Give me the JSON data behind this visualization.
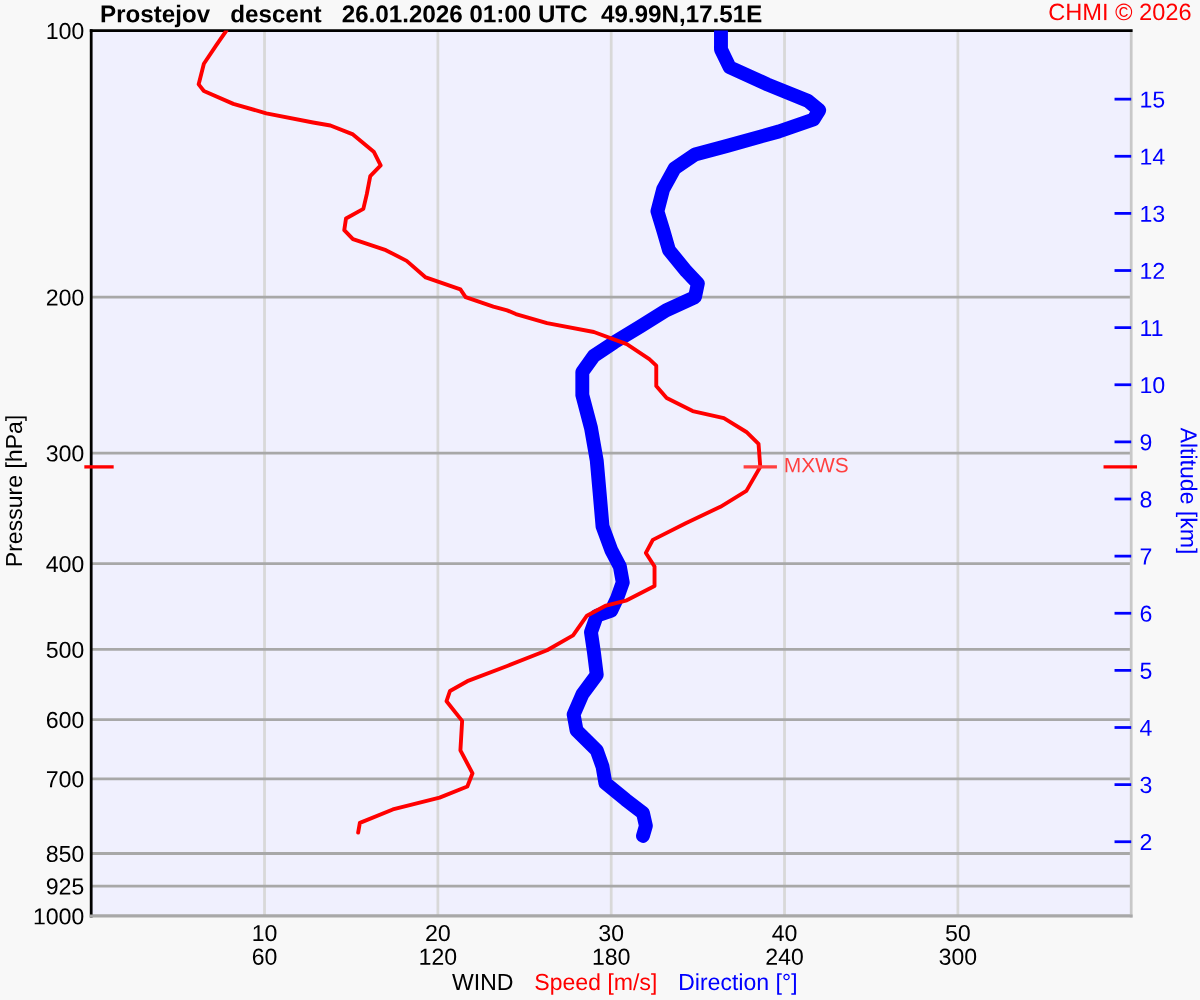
{
  "chart_data": {
    "type": "line",
    "title": "Prostejov   descent   26.01.2026 01:00 UTC  49.99N,17.51E",
    "xlabel": "WIND",
    "ylabel": "Pressure [hPa]",
    "y2label": "Altitude [km]",
    "annotations": [
      {
        "text": "MXWS",
        "x": 38.6,
        "y": 311
      },
      "CHMI © 2026"
    ],
    "series": [
      {
        "name": "Speed [m/s]",
        "color": "#ff0000",
        "x": [
          7.8,
          7.2,
          6.5,
          6.2,
          6.5,
          8.2,
          10.1,
          12.8,
          13.8,
          15.1,
          16.3,
          16.7,
          16.1,
          15.9,
          15.7,
          14.7,
          14.6,
          15.1,
          17.0,
          18.2,
          19.3,
          21.3,
          21.6,
          23.2,
          24.0,
          24.5,
          26.3,
          29.0,
          30.9,
          32.2,
          32.6,
          32.6,
          33.2,
          34.7,
          36.5,
          37.8,
          38.5,
          38.6,
          37.8,
          36.3,
          34.3,
          32.4,
          32.0,
          32.5,
          32.5,
          30.9,
          29.7,
          28.6,
          27.8,
          26.3,
          24.0,
          21.7,
          20.7,
          20.5,
          21.4,
          21.3,
          22.0,
          21.7,
          20.1,
          17.4,
          15.5,
          15.4
        ],
        "values": [
          100,
          104,
          109,
          115,
          117,
          121,
          124,
          127,
          128,
          131,
          137,
          142,
          146,
          153,
          159,
          163,
          168,
          172,
          177,
          182,
          190,
          196,
          200,
          205,
          207,
          209,
          214,
          219,
          226,
          235,
          239,
          252,
          260,
          269,
          274,
          284,
          293,
          311,
          331,
          345,
          360,
          376,
          389,
          403,
          424,
          440,
          446,
          458,
          482,
          501,
          522,
          543,
          557,
          572,
          602,
          650,
          690,
          714,
          735,
          758,
          785,
          805
        ]
      },
      {
        "name": "Direction [°]",
        "color": "#0000ff",
        "axis": "x2",
        "x": [
          218,
          218,
          221,
          234,
          248,
          252,
          250,
          238,
          220,
          209,
          202,
          198,
          196,
          198,
          200,
          206,
          210,
          209,
          199,
          190,
          181,
          174,
          170,
          170,
          173,
          175,
          176,
          177,
          180,
          183,
          184,
          182,
          180,
          175,
          173,
          174,
          175,
          170,
          167,
          168,
          175,
          177,
          178,
          185,
          191,
          192,
          191
        ],
        "values": [
          100,
          105,
          110,
          115,
          120,
          123,
          126,
          130,
          135,
          138,
          143,
          151,
          160,
          168,
          177,
          187,
          193,
          200,
          207,
          216,
          225,
          233,
          243,
          258,
          281,
          306,
          333,
          363,
          386,
          403,
          420,
          438,
          452,
          458,
          478,
          503,
          534,
          562,
          592,
          617,
          650,
          678,
          708,
          739,
          765,
          791,
          812
        ]
      }
    ],
    "xlim": [
      0,
      60
    ],
    "xticks": [
      10,
      20,
      30,
      40,
      50
    ],
    "x2lim": [
      0,
      360
    ],
    "x2ticks": [
      60,
      120,
      180,
      240,
      300
    ],
    "ylim": [
      1000,
      100
    ],
    "yticks": [
      100,
      200,
      300,
      400,
      500,
      600,
      700,
      850,
      925,
      1000
    ],
    "log": "y",
    "y2lim": [
      0.7,
      16.2
    ],
    "y2ticks": [
      2,
      3,
      4,
      5,
      6,
      7,
      8,
      9,
      10,
      11,
      12,
      13,
      14,
      15
    ],
    "grid": true
  }
}
